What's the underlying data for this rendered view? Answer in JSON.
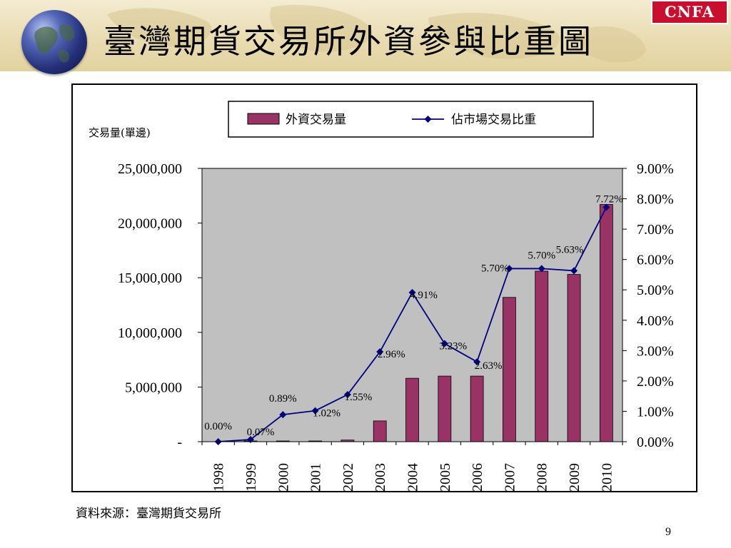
{
  "slide": {
    "title": "臺灣期貨交易所外資參與比重圖",
    "logo": "CNFA",
    "source": "資料來源：臺灣期貨交易所",
    "page_number": "9"
  },
  "colors": {
    "bar_fill": "#993366",
    "line": "#000080",
    "plot_bg": "#c0c0c0",
    "banner": "#e9dcb2",
    "logo_bg": "#c8102e"
  },
  "icons": {
    "globe": "globe-icon",
    "marker": "diamond"
  },
  "chart_data": {
    "type": "bar",
    "title": "",
    "ylabel": "交易量(單邊)",
    "xlabel": "",
    "categories": [
      "1998",
      "1999",
      "2000",
      "2001",
      "2002",
      "2003",
      "2004",
      "2005",
      "2006",
      "2007",
      "2008",
      "2009",
      "2010"
    ],
    "series": [
      {
        "name": "外資交易量",
        "type": "bar",
        "axis": "left",
        "values": [
          0,
          20000,
          40000,
          60000,
          150000,
          1900000,
          5800000,
          6000000,
          6000000,
          13200000,
          15600000,
          15300000,
          21700000
        ]
      },
      {
        "name": "佔市場交易比重",
        "type": "line",
        "axis": "right",
        "values": [
          0.0,
          0.07,
          0.89,
          1.02,
          1.55,
          2.96,
          4.91,
          3.23,
          2.63,
          5.7,
          5.7,
          5.63,
          7.72
        ],
        "labels": [
          "0.00%",
          "0.07%",
          "0.89%",
          "1.02%",
          "1.55%",
          "2.96%",
          "4.91%",
          "3.23%",
          "2.63%",
          "5.70%",
          "5.70%",
          "5.63%",
          "7.72%"
        ]
      }
    ],
    "left_axis": {
      "ylim": [
        0,
        25000000
      ],
      "ticks": [
        {
          "value": 0,
          "label": "-"
        },
        {
          "value": 5000000,
          "label": "5,000,000"
        },
        {
          "value": 10000000,
          "label": "10,000,000"
        },
        {
          "value": 15000000,
          "label": "15,000,000"
        },
        {
          "value": 20000000,
          "label": "20,000,000"
        },
        {
          "value": 25000000,
          "label": "25,000,000"
        }
      ]
    },
    "right_axis": {
      "ylim": [
        0,
        9
      ],
      "ticks": [
        {
          "value": 0,
          "label": "0.00%"
        },
        {
          "value": 1,
          "label": "1.00%"
        },
        {
          "value": 2,
          "label": "2.00%"
        },
        {
          "value": 3,
          "label": "3.00%"
        },
        {
          "value": 4,
          "label": "4.00%"
        },
        {
          "value": 5,
          "label": "5.00%"
        },
        {
          "value": 6,
          "label": "6.00%"
        },
        {
          "value": 7,
          "label": "7.00%"
        },
        {
          "value": 8,
          "label": "8.00%"
        },
        {
          "value": 9,
          "label": "9.00%"
        }
      ]
    },
    "legend": "top",
    "grid": false
  }
}
